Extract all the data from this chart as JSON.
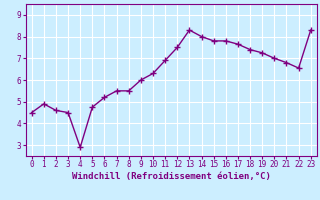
{
  "x": [
    0,
    1,
    2,
    3,
    4,
    5,
    6,
    7,
    8,
    9,
    10,
    11,
    12,
    13,
    14,
    15,
    16,
    17,
    18,
    19,
    20,
    21,
    22,
    23
  ],
  "y": [
    4.5,
    4.9,
    4.6,
    4.5,
    2.9,
    4.75,
    5.2,
    5.5,
    5.5,
    6.0,
    6.3,
    6.9,
    7.5,
    8.3,
    8.0,
    7.8,
    7.8,
    7.65,
    7.4,
    7.25,
    7.0,
    6.8,
    6.55,
    8.3
  ],
  "line_color": "#800080",
  "marker": "+",
  "marker_size": 4,
  "marker_linewidth": 1.0,
  "line_width": 1.0,
  "bg_color": "#cceeff",
  "grid_color": "#ffffff",
  "xlabel": "Windchill (Refroidissement éolien,°C)",
  "xlabel_color": "#800080",
  "tick_color": "#800080",
  "ylim": [
    2.5,
    9.5
  ],
  "xlim": [
    -0.5,
    23.5
  ],
  "yticks": [
    3,
    4,
    5,
    6,
    7,
    8,
    9
  ],
  "xticks": [
    0,
    1,
    2,
    3,
    4,
    5,
    6,
    7,
    8,
    9,
    10,
    11,
    12,
    13,
    14,
    15,
    16,
    17,
    18,
    19,
    20,
    21,
    22,
    23
  ],
  "spine_color": "#800080",
  "label_fontsize": 6.5,
  "tick_fontsize": 5.5
}
